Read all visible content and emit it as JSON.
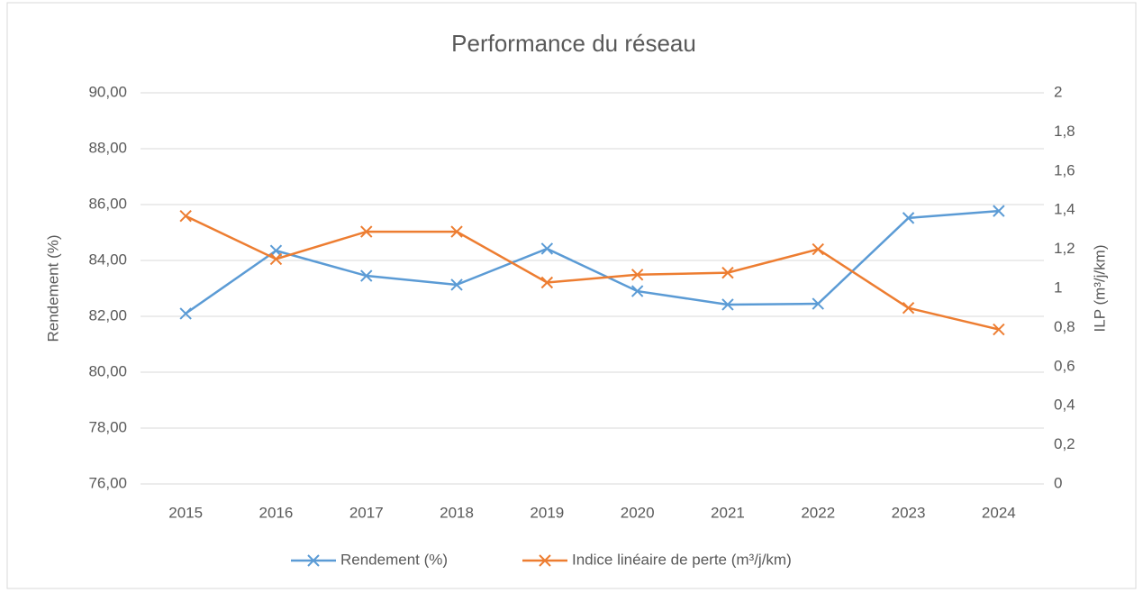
{
  "chart_data": {
    "type": "line",
    "title": "Performance du réseau",
    "y_label": "Rendement (%)",
    "y2_label": "ILP (m³/j/km)",
    "categories": [
      "2015",
      "2016",
      "2017",
      "2018",
      "2019",
      "2020",
      "2021",
      "2022",
      "2023",
      "2024"
    ],
    "series": [
      {
        "name": "Rendement (%)",
        "color": "#5b9bd5",
        "values": [
          82.1,
          84.35,
          83.45,
          83.13,
          84.42,
          82.9,
          82.42,
          82.45,
          85.52,
          85.77
        ]
      },
      {
        "name": "Indice linéaire de perte (m³/j/km)",
        "color": "#ed7d31",
        "axis": "y2",
        "values": [
          1.37,
          1.15,
          1.29,
          1.29,
          1.03,
          1.07,
          1.08,
          1.2,
          0.9,
          0.79
        ]
      }
    ],
    "ylim": [
      76,
      90
    ],
    "yticks": [
      {
        "value": 76,
        "label": "76,00"
      },
      {
        "value": 78,
        "label": "78,00"
      },
      {
        "value": 80,
        "label": "80,00"
      },
      {
        "value": 82,
        "label": "82,00"
      },
      {
        "value": 84,
        "label": "84,00"
      },
      {
        "value": 86,
        "label": "86,00"
      },
      {
        "value": 88,
        "label": "88,00"
      },
      {
        "value": 90,
        "label": "90,00"
      }
    ],
    "y2lim": [
      0,
      2
    ],
    "y2ticks": [
      0,
      {
        "value": 0.2,
        "label": "0,2"
      },
      {
        "value": 0.4,
        "label": "0,4"
      },
      {
        "value": 0.6,
        "label": "0,6"
      },
      {
        "value": 0.8,
        "label": "0,8"
      },
      1,
      {
        "value": 1.2,
        "label": "1,2"
      },
      {
        "value": 1.4,
        "label": "1,4"
      },
      {
        "value": 1.6,
        "label": "1,6"
      },
      {
        "value": 1.8,
        "label": "1,8"
      },
      2
    ],
    "grid": true,
    "legend": "bottom"
  }
}
